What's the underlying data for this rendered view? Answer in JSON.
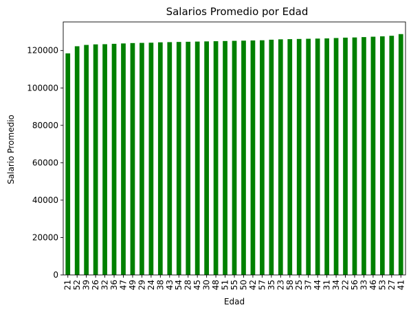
{
  "chart_data": {
    "type": "bar",
    "title": "Salarios Promedio por Edad",
    "xlabel": "Edad",
    "ylabel": "Salario Promedio",
    "categories": [
      "21",
      "52",
      "39",
      "26",
      "32",
      "36",
      "47",
      "49",
      "29",
      "24",
      "38",
      "43",
      "54",
      "28",
      "45",
      "30",
      "48",
      "51",
      "55",
      "50",
      "42",
      "57",
      "35",
      "23",
      "58",
      "25",
      "37",
      "44",
      "31",
      "34",
      "22",
      "56",
      "33",
      "46",
      "53",
      "27",
      "41"
    ],
    "values": [
      118500,
      122300,
      123000,
      123300,
      123400,
      123600,
      123800,
      124000,
      124100,
      124200,
      124400,
      124500,
      124600,
      124700,
      124800,
      124900,
      125000,
      125100,
      125200,
      125300,
      125400,
      125500,
      125800,
      126000,
      126100,
      126200,
      126300,
      126400,
      126500,
      126700,
      126900,
      127000,
      127200,
      127400,
      127600,
      127900,
      128800
    ],
    "yticks": [
      0,
      20000,
      40000,
      60000,
      80000,
      100000,
      120000
    ],
    "ylim": [
      0,
      135300
    ],
    "bar_color": "#008000",
    "grid": false,
    "legend": "none"
  }
}
